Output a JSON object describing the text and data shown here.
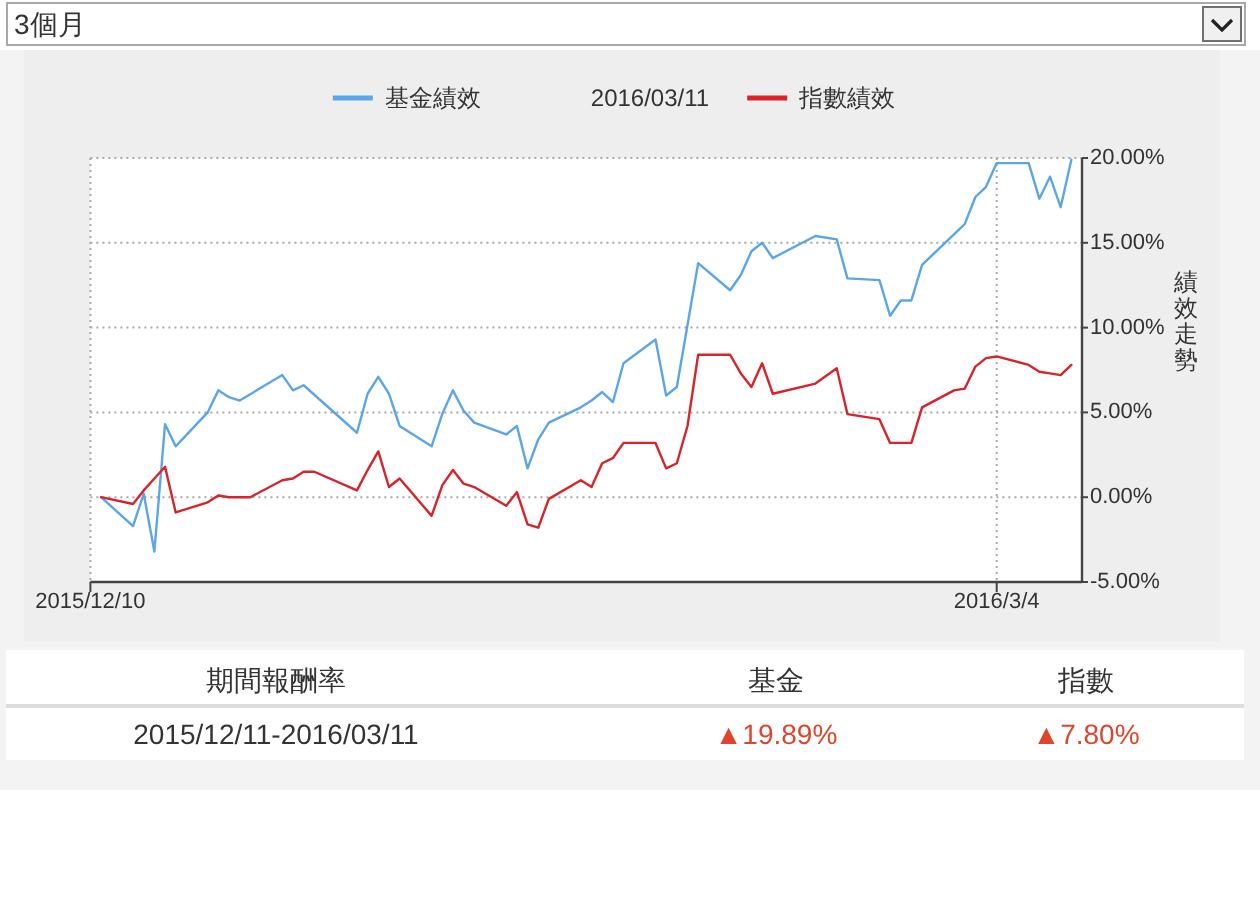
{
  "chart_data": {
    "type": "line",
    "legend_title": "2016/03/11",
    "ylabel": "績效走勢",
    "xlim": [
      "2015-12-10",
      "2016-03-12"
    ],
    "xticks": [
      {
        "value": "2015-12-10",
        "label": "2015/12/10"
      },
      {
        "value": "2016-03-04",
        "label": "2016/3/4"
      }
    ],
    "ylim": [
      -5,
      20
    ],
    "yticks": [
      {
        "value": -5,
        "label": "-5.00%"
      },
      {
        "value": 0,
        "label": "0.00%"
      },
      {
        "value": 5,
        "label": "5.00%"
      },
      {
        "value": 10,
        "label": "10.00%"
      },
      {
        "value": 15,
        "label": "15.00%"
      },
      {
        "value": 20,
        "label": "20.00%"
      }
    ],
    "grid": true,
    "legend": "top",
    "series": [
      {
        "name": "基金績效",
        "color": "#5aa6e8",
        "x": [
          "2015-12-11",
          "2015-12-14",
          "2015-12-15",
          "2015-12-16",
          "2015-12-17",
          "2015-12-18",
          "2015-12-21",
          "2015-12-22",
          "2015-12-23",
          "2015-12-24",
          "2015-12-28",
          "2015-12-29",
          "2015-12-30",
          "2016-01-04",
          "2016-01-05",
          "2016-01-06",
          "2016-01-07",
          "2016-01-08",
          "2016-01-11",
          "2016-01-12",
          "2016-01-13",
          "2016-01-14",
          "2016-01-15",
          "2016-01-18",
          "2016-01-19",
          "2016-01-20",
          "2016-01-21",
          "2016-01-22",
          "2016-01-25",
          "2016-01-26",
          "2016-01-27",
          "2016-01-28",
          "2016-01-29",
          "2016-02-01",
          "2016-02-02",
          "2016-02-03",
          "2016-02-05",
          "2016-02-08",
          "2016-02-09",
          "2016-02-10",
          "2016-02-11",
          "2016-02-12",
          "2016-02-16",
          "2016-02-18",
          "2016-02-19",
          "2016-02-22",
          "2016-02-23",
          "2016-02-24",
          "2016-02-25",
          "2016-02-26",
          "2016-03-01",
          "2016-03-02",
          "2016-03-03",
          "2016-03-04",
          "2016-03-07",
          "2016-03-08",
          "2016-03-09",
          "2016-03-10",
          "2016-03-11"
        ],
        "values": [
          0,
          -1.7,
          0.2,
          -3.2,
          4.3,
          3.0,
          5.0,
          6.3,
          5.9,
          5.7,
          7.2,
          6.3,
          6.6,
          3.8,
          6.1,
          7.1,
          6.1,
          4.2,
          3.0,
          4.9,
          6.3,
          5.1,
          4.4,
          3.7,
          4.2,
          1.7,
          3.4,
          4.4,
          5.3,
          5.7,
          6.2,
          5.6,
          7.9,
          9.3,
          6.0,
          6.5,
          13.8,
          12.2,
          13.1,
          14.5,
          15.0,
          14.1,
          15.4,
          15.2,
          12.9,
          12.8,
          10.7,
          11.6,
          11.6,
          13.7,
          16.1,
          17.7,
          18.3,
          19.7,
          19.7,
          17.6,
          18.9,
          17.1,
          19.9
        ]
      },
      {
        "name": "指數績效",
        "color": "#d8232a",
        "x": [
          "2015-12-11",
          "2015-12-14",
          "2015-12-15",
          "2015-12-16",
          "2015-12-17",
          "2015-12-18",
          "2015-12-21",
          "2015-12-22",
          "2015-12-23",
          "2015-12-25",
          "2015-12-28",
          "2015-12-29",
          "2015-12-30",
          "2015-12-31",
          "2016-01-04",
          "2016-01-05",
          "2016-01-06",
          "2016-01-07",
          "2016-01-08",
          "2016-01-11",
          "2016-01-12",
          "2016-01-13",
          "2016-01-14",
          "2016-01-15",
          "2016-01-18",
          "2016-01-19",
          "2016-01-20",
          "2016-01-21",
          "2016-01-22",
          "2016-01-25",
          "2016-01-26",
          "2016-01-27",
          "2016-01-28",
          "2016-01-29",
          "2016-02-01",
          "2016-02-02",
          "2016-02-03",
          "2016-02-04",
          "2016-02-05",
          "2016-02-08",
          "2016-02-09",
          "2016-02-10",
          "2016-02-11",
          "2016-02-12",
          "2016-02-16",
          "2016-02-18",
          "2016-02-19",
          "2016-02-22",
          "2016-02-23",
          "2016-02-25",
          "2016-02-26",
          "2016-02-29",
          "2016-03-01",
          "2016-03-02",
          "2016-03-03",
          "2016-03-04",
          "2016-03-07",
          "2016-03-08",
          "2016-03-09",
          "2016-03-10",
          "2016-03-11"
        ],
        "values": [
          0,
          -0.4,
          0.4,
          1.1,
          1.8,
          -0.9,
          -0.3,
          0.1,
          0.0,
          0.0,
          1.0,
          1.1,
          1.5,
          1.5,
          0.4,
          1.6,
          2.7,
          0.6,
          1.1,
          -1.1,
          0.7,
          1.6,
          0.8,
          0.6,
          -0.5,
          0.3,
          -1.6,
          -1.8,
          -0.1,
          1.0,
          0.6,
          2.0,
          2.3,
          3.2,
          3.2,
          1.7,
          2.0,
          4.2,
          8.4,
          8.4,
          7.3,
          6.5,
          7.9,
          6.1,
          6.7,
          7.6,
          4.9,
          4.6,
          3.2,
          3.2,
          5.3,
          6.3,
          6.4,
          7.7,
          8.2,
          8.3,
          7.8,
          7.4,
          7.3,
          7.2,
          7.8
        ]
      }
    ],
    "annotations": [
      "3個月",
      "期間報酬率",
      "基金",
      "指數",
      "2015/12/11-2016/03/11",
      "▲19.89%",
      "▲7.80%"
    ]
  }
}
